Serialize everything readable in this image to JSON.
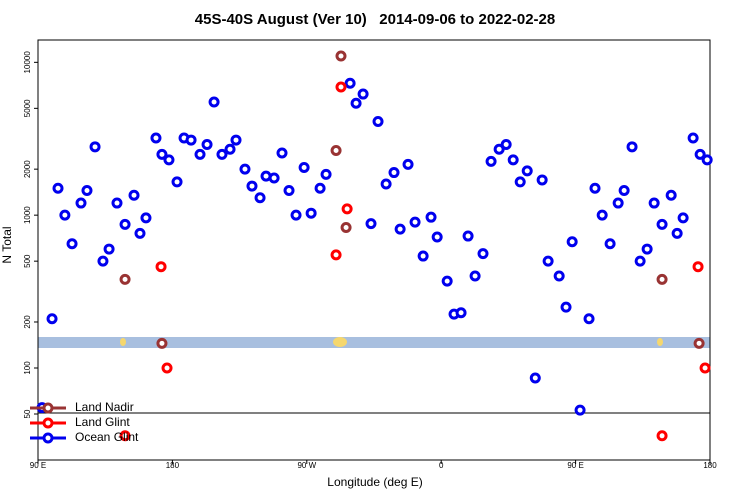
{
  "chart_data": {
    "type": "scatter",
    "title": "45S-40S August (Ver 10)   2014-09-06 to 2022-02-28",
    "x_label": "Longitude (deg E)",
    "y_label": "N Total",
    "y_scale": "log",
    "legend": "lower left",
    "xlim": [
      90,
      540
    ],
    "xticks": [
      {
        "value": 90,
        "label": "90 E"
      },
      180,
      {
        "value": 270,
        "label": "90 W"
      },
      {
        "value": 360,
        "label": "0"
      },
      {
        "value": 450,
        "label": "90 E"
      },
      {
        "value": 540,
        "label": "180"
      }
    ],
    "ylim": [
      25,
      14000
    ],
    "yticks": [
      50,
      100,
      200,
      500,
      1000,
      2000,
      5000,
      10000
    ],
    "series": [
      {
        "name": "Land Nadir",
        "color": "#993333",
        "x": [
          148.3,
          173,
          289.6,
          292.9,
          296.3,
          507.9,
          532.7
        ],
        "values": [
          380,
          145,
          2650,
          11000,
          830,
          380,
          145
        ]
      },
      {
        "name": "Land Glint",
        "color": "#ff0000",
        "x": [
          148.3,
          172.4,
          176.4,
          289.6,
          292.9,
          297,
          507.9,
          532,
          536.7
        ],
        "values": [
          36,
          460,
          100,
          550,
          6900,
          1100,
          36,
          460,
          100
        ]
      },
      {
        "name": "Ocean Glint",
        "color": "#0000ee",
        "x": [
          92.7,
          99.4,
          103.4,
          108,
          112.8,
          118.8,
          122.8,
          128.2,
          133.5,
          137.6,
          142.9,
          148.3,
          154.3,
          158.3,
          162.3,
          169,
          173,
          177.7,
          183.1,
          187.8,
          192.5,
          198.5,
          203.2,
          207.9,
          213.2,
          218.6,
          222.6,
          228.6,
          233.3,
          238.7,
          242.7,
          248.1,
          253.4,
          258.1,
          262.8,
          268.2,
          272.9,
          278.9,
          282.9,
          299,
          303,
          307.7,
          317.7,
          313,
          323.1,
          328.4,
          332.5,
          337.8,
          342.5,
          347.9,
          353.2,
          357.3,
          364,
          368.6,
          373.3,
          378,
          382.7,
          388,
          393.4,
          398.8,
          403.5,
          408.2,
          412.9,
          417.6,
          423,
          427.6,
          431.6,
          439,
          443.6,
          447.7,
          453,
          459,
          463,
          467.8,
          473.1,
          478.5,
          482.5,
          487.8,
          493.2,
          497.9,
          502.6,
          507.9,
          514,
          518,
          522,
          528.7,
          533.4,
          538.1
        ],
        "values": [
          55,
          210,
          1500,
          1000,
          650,
          1200,
          1450,
          2800,
          500,
          600,
          1200,
          870,
          1350,
          760,
          960,
          3200,
          2500,
          2300,
          1650,
          3200,
          3100,
          2500,
          2900,
          5500,
          2500,
          2700,
          3100,
          2000,
          1550,
          1300,
          1800,
          1750,
          2550,
          1450,
          1000,
          2050,
          1030,
          1500,
          1850,
          7300,
          5400,
          6200,
          4100,
          880,
          1600,
          1900,
          810,
          2150,
          900,
          540,
          970,
          720,
          370,
          225,
          230,
          730,
          400,
          560,
          2250,
          2700,
          2900,
          2300,
          1650,
          1950,
          86,
          1700,
          500,
          400,
          250,
          670,
          53,
          210,
          1500,
          1000,
          650,
          1200,
          1450,
          2800,
          500,
          600,
          1200,
          870,
          1350,
          760,
          960,
          3200,
          2500,
          2300
        ]
      }
    ]
  }
}
